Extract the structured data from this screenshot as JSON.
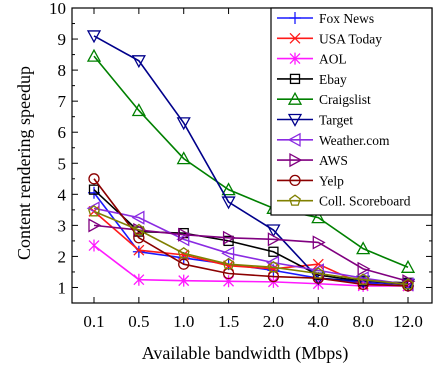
{
  "chart_data": {
    "type": "line",
    "title": "",
    "xlabel": "Available bandwidth (Mbps)",
    "ylabel": "Content rendering speedup",
    "categories": [
      "0.1",
      "0.5",
      "1.0",
      "1.5",
      "2.0",
      "4.0",
      "8.0",
      "12.0"
    ],
    "ylim": [
      0.5,
      10
    ],
    "yticks": [
      1,
      2,
      3,
      4,
      5,
      6,
      7,
      8,
      9,
      10
    ],
    "grid": false,
    "legend_position": "top-right",
    "series": [
      {
        "name": "Fox News",
        "color": "#1a1aff",
        "marker": "plus",
        "values": [
          4.05,
          2.15,
          1.95,
          1.75,
          1.55,
          1.3,
          1.15,
          1.05
        ]
      },
      {
        "name": "USA Today",
        "color": "#ff1a1a",
        "marker": "x",
        "values": [
          3.45,
          2.2,
          2.05,
          1.7,
          1.6,
          1.75,
          1.1,
          1.05
        ]
      },
      {
        "name": "AOL",
        "color": "#ff1aff",
        "marker": "star",
        "values": [
          2.35,
          1.25,
          1.22,
          1.2,
          1.18,
          1.12,
          1.05,
          1.05
        ]
      },
      {
        "name": "Ebay",
        "color": "#000000",
        "marker": "square",
        "values": [
          4.15,
          2.8,
          2.75,
          2.5,
          2.15,
          1.4,
          1.2,
          1.15
        ]
      },
      {
        "name": "Craigslist",
        "color": "#008000",
        "marker": "triangle-up",
        "values": [
          8.45,
          6.7,
          5.15,
          4.15,
          3.55,
          3.25,
          2.25,
          1.65
        ]
      },
      {
        "name": "Target",
        "color": "#00008b",
        "marker": "triangle-down",
        "values": [
          9.1,
          8.3,
          6.3,
          3.75,
          2.85,
          1.3,
          1.2,
          1.1
        ]
      },
      {
        "name": "Weather.com",
        "color": "#8a2be2",
        "marker": "triangle-left",
        "values": [
          3.55,
          3.25,
          2.55,
          2.1,
          1.8,
          1.55,
          1.3,
          1.1
        ]
      },
      {
        "name": "AWS",
        "color": "#800080",
        "marker": "triangle-right",
        "values": [
          3.0,
          2.85,
          2.7,
          2.6,
          2.55,
          2.45,
          1.6,
          1.2
        ]
      },
      {
        "name": "Yelp",
        "color": "#8b0000",
        "marker": "circle",
        "values": [
          4.5,
          2.6,
          1.75,
          1.45,
          1.35,
          1.3,
          1.1,
          1.05
        ]
      },
      {
        "name": "Coll. Scoreboard",
        "color": "#808000",
        "marker": "pentagon",
        "values": [
          3.45,
          2.85,
          2.1,
          1.75,
          1.65,
          1.45,
          1.25,
          1.1
        ]
      }
    ]
  }
}
